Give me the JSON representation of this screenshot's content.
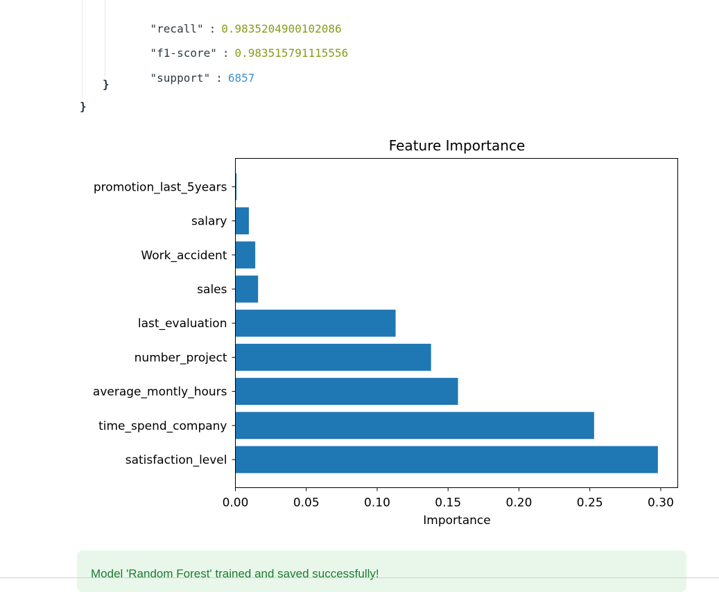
{
  "json_view": {
    "rows": [
      {
        "key": "\"recall\"",
        "colon": ":",
        "value": "0.9835204900102086",
        "kind": "float"
      },
      {
        "key": "\"f1-score\"",
        "colon": ":",
        "value": "0.983515791115556",
        "kind": "float"
      },
      {
        "key": "\"support\"",
        "colon": ":",
        "value": "6857",
        "kind": "int"
      }
    ],
    "inner_close": "}",
    "outer_close": "}"
  },
  "chart_data": {
    "type": "bar",
    "orientation": "horizontal",
    "title": "Feature Importance",
    "xlabel": "Importance",
    "ylabel": "",
    "categories": [
      "satisfaction_level",
      "time_spend_company",
      "average_montly_hours",
      "number_project",
      "last_evaluation",
      "sales",
      "Work_accident",
      "salary",
      "promotion_last_5years"
    ],
    "values": [
      0.298,
      0.253,
      0.157,
      0.138,
      0.113,
      0.016,
      0.014,
      0.0095,
      0.0008
    ],
    "xlim": [
      0,
      0.312
    ],
    "xticks": [
      "0.00",
      "0.05",
      "0.10",
      "0.15",
      "0.20",
      "0.25",
      "0.30"
    ],
    "xtick_values": [
      0,
      0.05,
      0.1,
      0.15,
      0.2,
      0.25,
      0.3
    ],
    "grid": false,
    "bar_color": "#1f77b4"
  },
  "alert": {
    "message": "Model 'Random Forest' trained and saved successfully!",
    "background": "#e8f7ea",
    "color": "#1d7a31"
  }
}
